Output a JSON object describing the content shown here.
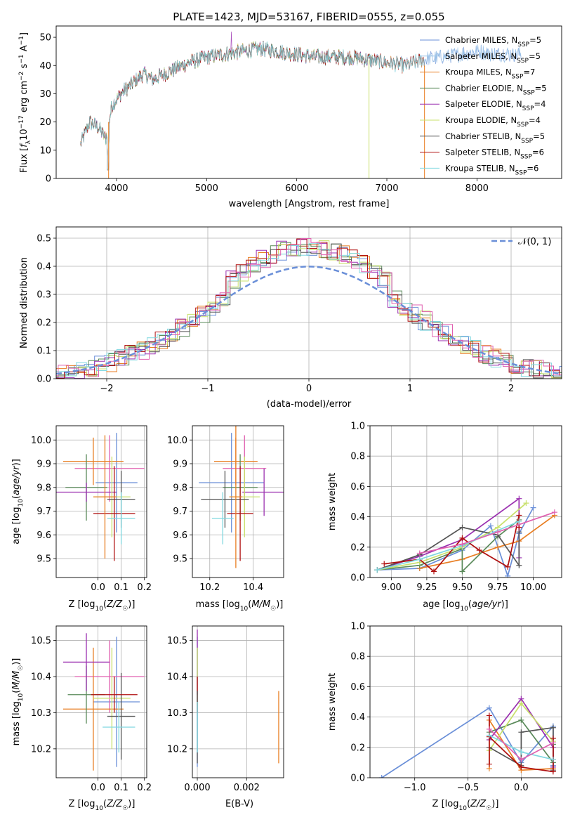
{
  "chart_data": [
    {
      "type": "line",
      "title": "PLATE=1423, MJD=53167, FIBERID=0555, z=0.055",
      "xlabel": "wavelength [Angstrom, rest frame]",
      "ylabel": "Flux [f_λ10^-17 erg cm^-2 s^-1 A^-1]",
      "xlim": [
        3330,
        8940
      ],
      "ylim": [
        0,
        54
      ],
      "xticks": [
        4000,
        5000,
        6000,
        7000,
        8000
      ],
      "yticks": [
        0,
        10,
        20,
        30,
        40,
        50
      ],
      "grid": false,
      "legend_position": "top-right",
      "spectrum_knots": [
        [
          3600,
          12
        ],
        [
          3700,
          20
        ],
        [
          3800,
          18
        ],
        [
          3880,
          14
        ],
        [
          3950,
          26
        ],
        [
          4050,
          30
        ],
        [
          4150,
          33
        ],
        [
          4300,
          37
        ],
        [
          4400,
          35
        ],
        [
          4600,
          38
        ],
        [
          4800,
          41
        ],
        [
          5000,
          43
        ],
        [
          5200,
          44
        ],
        [
          5400,
          45
        ],
        [
          5600,
          46
        ],
        [
          5800,
          45
        ],
        [
          6000,
          44
        ],
        [
          6200,
          43
        ],
        [
          6400,
          43
        ],
        [
          6600,
          43
        ],
        [
          6800,
          42
        ],
        [
          7000,
          41
        ],
        [
          7200,
          40
        ],
        [
          7400,
          42
        ],
        [
          7600,
          43
        ],
        [
          7800,
          44
        ],
        [
          8000,
          45
        ],
        [
          8200,
          44
        ],
        [
          8400,
          44
        ],
        [
          8500,
          44
        ]
      ],
      "series": [
        {
          "name": "Chabrier MILES, N_SSP=5",
          "color": "#6a8fd8",
          "range": [
            3600,
            8500
          ]
        },
        {
          "name": "Salpeter MILES, N_SSP=5",
          "color": "#9fc7e8",
          "range": [
            3600,
            8500
          ]
        },
        {
          "name": "Kroupa MILES, N_SSP=7",
          "color": "#e87e23",
          "range": [
            3600,
            7420
          ]
        },
        {
          "name": "Chabrier ELODIE, N_SSP=5",
          "color": "#5a8a5a",
          "range": [
            3600,
            6800
          ]
        },
        {
          "name": "Salpeter ELODIE, N_SSP=4",
          "color": "#9b30b0",
          "range": [
            3600,
            6800
          ]
        },
        {
          "name": "Kroupa ELODIE, N_SSP=4",
          "color": "#c8e06a",
          "range": [
            3600,
            6800
          ]
        },
        {
          "name": "Chabrier STELIB, N_SSP=5",
          "color": "#555555",
          "range": [
            3600,
            7420
          ]
        },
        {
          "name": "Salpeter STELIB, N_SSP=6",
          "color": "#b01010",
          "range": [
            3600,
            7420
          ]
        },
        {
          "name": "Kroupa STELIB, N_SSP=6",
          "color": "#7fd8e0",
          "range": [
            3600,
            7420
          ]
        }
      ]
    },
    {
      "type": "line",
      "xlabel": "(data-model)/error",
      "ylabel": "Normed distribution",
      "xlim": [
        -2.5,
        2.5
      ],
      "ylim": [
        0,
        0.54
      ],
      "xticks": [
        -2,
        -1,
        0,
        1,
        2
      ],
      "yticks": [
        0.0,
        0.1,
        0.2,
        0.3,
        0.4,
        0.5
      ],
      "grid": true,
      "legend_position": "top-right",
      "reference_curve": {
        "name": "𝒩(0, 1)",
        "color": "#6a8fd8",
        "style": "dashed"
      },
      "histogram_bin_width": 0.1,
      "histogram_colors": [
        "#6a8fd8",
        "#e87e23",
        "#5a8a5a",
        "#9b30b0",
        "#c8e06a",
        "#555555",
        "#b01010",
        "#7fd8e0",
        "#e060b0"
      ]
    },
    {
      "type": "scatter",
      "xlabel": "Z [log₁₀(Z/Z☉)]",
      "ylabel": "age  [log₁₀(age/yr)]",
      "xlim": [
        -0.18,
        0.21
      ],
      "ylim": [
        9.42,
        10.06
      ],
      "xticks": [
        0.0,
        0.1,
        0.2
      ],
      "yticks": [
        9.5,
        9.6,
        9.7,
        9.8,
        9.9,
        10.0
      ],
      "grid": true,
      "points": [
        {
          "x": 0.08,
          "y": 9.82,
          "xerr": 0.09,
          "yerr": 0.21,
          "color": "#6a8fd8"
        },
        {
          "x": 0.05,
          "y": 9.88,
          "xerr": 0.15,
          "yerr": 0.14,
          "color": "#e060b0"
        },
        {
          "x": -0.02,
          "y": 9.91,
          "xerr": 0.13,
          "yerr": 0.1,
          "color": "#e87e23"
        },
        {
          "x": -0.05,
          "y": 9.8,
          "xerr": 0.09,
          "yerr": 0.14,
          "color": "#5a8a5a"
        },
        {
          "x": -0.05,
          "y": 9.78,
          "xerr": 0.13,
          "yerr": 0.04,
          "color": "#9b30b0"
        },
        {
          "x": 0.06,
          "y": 9.76,
          "xerr": 0.08,
          "yerr": 0.17,
          "color": "#c8e06a"
        },
        {
          "x": 0.1,
          "y": 9.75,
          "xerr": 0.06,
          "yerr": 0.12,
          "color": "#555555"
        },
        {
          "x": 0.07,
          "y": 9.69,
          "xerr": 0.09,
          "yerr": 0.2,
          "color": "#b01010"
        },
        {
          "x": 0.1,
          "y": 9.67,
          "xerr": 0.06,
          "yerr": 0.11,
          "color": "#7fd8e0"
        },
        {
          "x": 0.03,
          "y": 9.76,
          "xerr": 0.05,
          "yerr": 0.26,
          "color": "#e87e23"
        }
      ]
    },
    {
      "type": "scatter",
      "xlabel": "mass [log₁₀(M/M☉)]",
      "ylabel": "",
      "xlim": [
        10.12,
        10.54
      ],
      "ylim": [
        9.42,
        10.06
      ],
      "xticks": [
        10.2,
        10.4
      ],
      "yticks": [
        9.5,
        9.6,
        9.7,
        9.8,
        9.9,
        10.0
      ],
      "grid": true,
      "points": [
        {
          "x": 10.3,
          "y": 9.82,
          "xerr": 0.15,
          "yerr": 0.21,
          "color": "#6a8fd8"
        },
        {
          "x": 10.36,
          "y": 9.88,
          "xerr": 0.1,
          "yerr": 0.14,
          "color": "#e060b0"
        },
        {
          "x": 10.32,
          "y": 9.91,
          "xerr": 0.1,
          "yerr": 0.1,
          "color": "#e87e23"
        },
        {
          "x": 10.34,
          "y": 9.8,
          "xerr": 0.08,
          "yerr": 0.14,
          "color": "#5a8a5a"
        },
        {
          "x": 10.45,
          "y": 9.78,
          "xerr": 0.1,
          "yerr": 0.1,
          "color": "#9b30b0"
        },
        {
          "x": 10.36,
          "y": 9.76,
          "xerr": 0.07,
          "yerr": 0.17,
          "color": "#c8e06a"
        },
        {
          "x": 10.27,
          "y": 9.75,
          "xerr": 0.11,
          "yerr": 0.12,
          "color": "#555555"
        },
        {
          "x": 10.34,
          "y": 9.69,
          "xerr": 0.06,
          "yerr": 0.2,
          "color": "#b01010"
        },
        {
          "x": 10.26,
          "y": 9.67,
          "xerr": 0.05,
          "yerr": 0.11,
          "color": "#7fd8e0"
        },
        {
          "x": 10.32,
          "y": 9.76,
          "xerr": 0.03,
          "yerr": 0.3,
          "color": "#e87e23"
        }
      ]
    },
    {
      "type": "line",
      "xlabel": "age  [log₁₀(age/yr)]",
      "ylabel": "mass weight",
      "xlim": [
        8.85,
        10.2
      ],
      "ylim": [
        0,
        1.0
      ],
      "xticks": [
        9.0,
        9.25,
        9.5,
        9.75,
        10.0
      ],
      "yticks": [
        0.0,
        0.2,
        0.4,
        0.6,
        0.8,
        1.0
      ],
      "grid": true,
      "series": [
        {
          "color": "#6a8fd8",
          "x": [
            8.9,
            9.2,
            9.5,
            9.7,
            9.82,
            9.9,
            10.0
          ],
          "y": [
            0.05,
            0.06,
            0.18,
            0.34,
            0.01,
            0.29,
            0.46
          ]
        },
        {
          "color": "#e87e23",
          "x": [
            9.2,
            9.5,
            9.75,
            9.9,
            10.15
          ],
          "y": [
            0.06,
            0.12,
            0.2,
            0.24,
            0.41
          ]
        },
        {
          "color": "#5a8a5a",
          "x": [
            8.9,
            9.2,
            9.5,
            9.5,
            9.75,
            9.9
          ],
          "y": [
            0.05,
            0.08,
            0.19,
            0.04,
            0.27,
            0.38
          ]
        },
        {
          "color": "#9b30b0",
          "x": [
            8.9,
            9.2,
            9.5,
            9.9,
            9.9
          ],
          "y": [
            0.05,
            0.14,
            0.25,
            0.52,
            0.13
          ]
        },
        {
          "color": "#c8e06a",
          "x": [
            8.9,
            9.2,
            9.5,
            9.75,
            9.95
          ],
          "y": [
            0.05,
            0.1,
            0.2,
            0.33,
            0.49
          ]
        },
        {
          "color": "#555555",
          "x": [
            8.9,
            9.2,
            9.5,
            9.75,
            9.9,
            9.9
          ],
          "y": [
            0.05,
            0.15,
            0.33,
            0.28,
            0.08,
            0.3
          ]
        },
        {
          "color": "#b01010",
          "x": [
            8.95,
            9.2,
            9.3,
            9.5,
            9.62,
            9.82,
            9.9,
            9.9
          ],
          "y": [
            0.09,
            0.12,
            0.04,
            0.26,
            0.18,
            0.07,
            0.41,
            0.33
          ]
        },
        {
          "color": "#7fd8e0",
          "x": [
            8.9,
            9.2,
            9.5,
            9.9
          ],
          "y": [
            0.05,
            0.12,
            0.21,
            0.37
          ]
        },
        {
          "color": "#e060b0",
          "x": [
            9.2,
            9.5,
            9.75,
            10.15
          ],
          "y": [
            0.16,
            0.22,
            0.3,
            0.43
          ]
        }
      ]
    },
    {
      "type": "scatter",
      "xlabel": "Z [log₁₀(Z/Z☉)]",
      "ylabel": "mass [log₁₀(M/M☉)]",
      "xlim": [
        -0.18,
        0.21
      ],
      "ylim": [
        10.12,
        10.54
      ],
      "xticks": [
        0.0,
        0.1,
        0.2
      ],
      "yticks": [
        10.2,
        10.3,
        10.4,
        10.5
      ],
      "grid": true,
      "points": [
        {
          "x": 0.08,
          "y": 10.33,
          "xerr": 0.1,
          "yerr": 0.18,
          "color": "#6a8fd8"
        },
        {
          "x": 0.05,
          "y": 10.4,
          "xerr": 0.15,
          "yerr": 0.1,
          "color": "#e060b0"
        },
        {
          "x": -0.02,
          "y": 10.31,
          "xerr": 0.13,
          "yerr": 0.17,
          "color": "#e87e23"
        },
        {
          "x": -0.05,
          "y": 10.35,
          "xerr": 0.08,
          "yerr": 0.08,
          "color": "#5a8a5a"
        },
        {
          "x": -0.05,
          "y": 10.44,
          "xerr": 0.1,
          "yerr": 0.08,
          "color": "#9b30b0"
        },
        {
          "x": 0.06,
          "y": 10.34,
          "xerr": 0.08,
          "yerr": 0.14,
          "color": "#c8e06a"
        },
        {
          "x": 0.1,
          "y": 10.29,
          "xerr": 0.06,
          "yerr": 0.12,
          "color": "#555555"
        },
        {
          "x": 0.07,
          "y": 10.35,
          "xerr": 0.1,
          "yerr": 0.05,
          "color": "#b01010"
        },
        {
          "x": 0.09,
          "y": 10.26,
          "xerr": 0.07,
          "yerr": 0.07,
          "color": "#7fd8e0"
        }
      ]
    },
    {
      "type": "scatter",
      "xlabel": "E(B-V)",
      "ylabel": "",
      "xlim": [
        -0.0002,
        0.0035
      ],
      "ylim": [
        10.12,
        10.54
      ],
      "xticks": [
        0.0,
        0.002
      ],
      "yticks": [
        10.2,
        10.3,
        10.4,
        10.5
      ],
      "grid": true,
      "points": [
        {
          "x": 0.0,
          "y": 10.33,
          "xerr": 0,
          "yerr": 0.18,
          "color": "#6a8fd8"
        },
        {
          "x": 0.0,
          "y": 10.44,
          "xerr": 0,
          "yerr": 0.09,
          "color": "#9b30b0"
        },
        {
          "x": 0.0,
          "y": 10.4,
          "xerr": 0,
          "yerr": 0.08,
          "color": "#c8e06a"
        },
        {
          "x": 0.0,
          "y": 10.35,
          "xerr": 0,
          "yerr": 0.05,
          "color": "#b01010"
        },
        {
          "x": 0.0,
          "y": 10.26,
          "xerr": 0,
          "yerr": 0.1,
          "color": "#555555"
        },
        {
          "x": 0.0,
          "y": 10.26,
          "xerr": 0,
          "yerr": 0.07,
          "color": "#7fd8e0"
        },
        {
          "x": 0.0033,
          "y": 10.26,
          "xerr": 0,
          "yerr": 0.1,
          "color": "#e87e23"
        }
      ]
    },
    {
      "type": "line",
      "xlabel": "Z [log₁₀(Z/Z☉)]",
      "ylabel": "mass weight",
      "xlim": [
        -1.42,
        0.38
      ],
      "ylim": [
        0,
        1.0
      ],
      "xticks": [
        -1.0,
        -0.5,
        0.0
      ],
      "yticks": [
        0.0,
        0.2,
        0.4,
        0.6,
        0.8,
        1.0
      ],
      "grid": true,
      "series": [
        {
          "color": "#6a8fd8",
          "x": [
            -1.31,
            -0.3,
            0.0,
            0.3,
            0.3
          ],
          "y": [
            0.0,
            0.46,
            0.1,
            0.34,
            0.08
          ]
        },
        {
          "color": "#e87e23",
          "x": [
            -0.3,
            -0.3,
            0.0,
            0.3
          ],
          "y": [
            0.06,
            0.38,
            0.05,
            0.06
          ]
        },
        {
          "color": "#5a8a5a",
          "x": [
            -0.3,
            0.0,
            0.3,
            0.3
          ],
          "y": [
            0.3,
            0.38,
            0.1,
            0.22
          ]
        },
        {
          "color": "#9b30b0",
          "x": [
            -0.3,
            0.0,
            0.3,
            0.3
          ],
          "y": [
            0.25,
            0.52,
            0.2,
            0.07
          ]
        },
        {
          "color": "#c8e06a",
          "x": [
            -0.3,
            0.0,
            0.3
          ],
          "y": [
            0.18,
            0.49,
            0.24
          ]
        },
        {
          "color": "#555555",
          "x": [
            -0.3,
            0.0,
            0.0,
            0.3,
            0.3
          ],
          "y": [
            0.2,
            0.08,
            0.3,
            0.33,
            0.05
          ]
        },
        {
          "color": "#b01010",
          "x": [
            -0.3,
            -0.3,
            -0.3,
            0.0,
            0.3,
            0.3,
            0.3
          ],
          "y": [
            0.41,
            0.09,
            0.27,
            0.07,
            0.04,
            0.26,
            0.12
          ]
        },
        {
          "color": "#7fd8e0",
          "x": [
            -0.3,
            0.0,
            0.3
          ],
          "y": [
            0.28,
            0.17,
            0.12
          ]
        },
        {
          "color": "#e060b0",
          "x": [
            -0.3,
            0.0,
            0.3
          ],
          "y": [
            0.32,
            0.12,
            0.23
          ]
        }
      ]
    }
  ]
}
